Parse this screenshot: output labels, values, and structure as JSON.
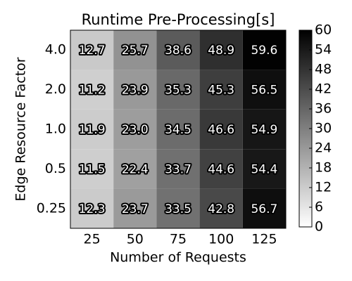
{
  "chart_data": {
    "type": "heatmap",
    "title": "Runtime Pre-Processing[s]",
    "xlabel": "Number of Requests",
    "ylabel": "Edge Resource Factor",
    "x_categories": [
      "25",
      "50",
      "75",
      "100",
      "125"
    ],
    "y_categories": [
      "4.0",
      "2.0",
      "1.0",
      "0.5",
      "0.25"
    ],
    "z": [
      [
        12.7,
        25.7,
        38.6,
        48.9,
        59.6
      ],
      [
        11.2,
        23.9,
        35.3,
        45.3,
        56.5
      ],
      [
        11.9,
        23.0,
        34.5,
        46.6,
        54.9
      ],
      [
        11.5,
        22.4,
        33.7,
        44.6,
        54.4
      ],
      [
        12.3,
        23.7,
        33.5,
        42.8,
        56.7
      ]
    ],
    "value_labels": [
      [
        "12.7",
        "25.7",
        "38.6",
        "48.9",
        "59.6"
      ],
      [
        "11.2",
        "23.9",
        "35.3",
        "45.3",
        "56.5"
      ],
      [
        "11.9",
        "23.0",
        "34.5",
        "46.6",
        "54.9"
      ],
      [
        "11.5",
        "22.4",
        "33.7",
        "44.6",
        "54.4"
      ],
      [
        "12.3",
        "23.7",
        "33.5",
        "42.8",
        "56.7"
      ]
    ],
    "colormap": "gray_r",
    "clim": [
      0,
      60
    ],
    "cticks": [
      0,
      6,
      12,
      18,
      24,
      30,
      36,
      42,
      48,
      54,
      60
    ]
  }
}
